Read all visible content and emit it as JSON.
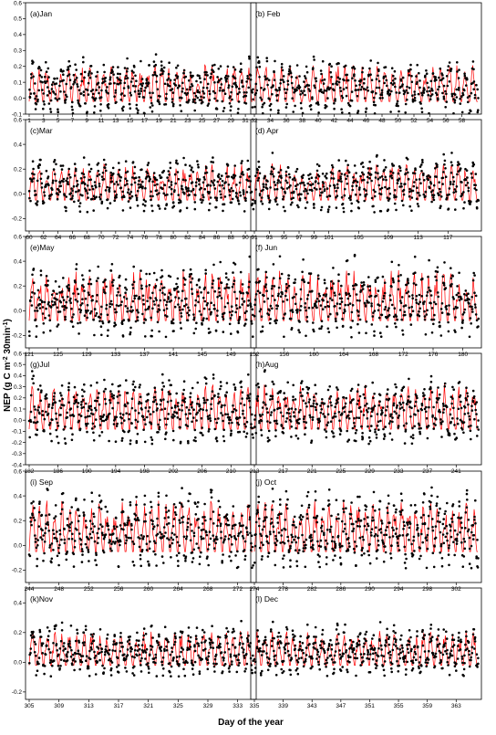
{
  "figure": {
    "ylabel_main": "NEP (g C m",
    "ylabel_sup1": "-2",
    "ylabel_mid": " 30min",
    "ylabel_sup2": "-1",
    "ylabel_end": ")",
    "xlabel": "Day of the year"
  },
  "colors": {
    "model": "#ff0000",
    "obs": "#000000",
    "axis": "#000000"
  },
  "chart_data": [
    {
      "type": "scatter",
      "title": "(a)Jan",
      "ylim": [
        -0.1,
        0.6
      ],
      "yticks": [
        "-0.1",
        "0.0",
        "0.1",
        "0.2",
        "0.3",
        "0.4",
        "0.5",
        "0.6"
      ],
      "yticks_values": [
        -0.1,
        0,
        0.1,
        0.2,
        0.3,
        0.4,
        0.5,
        0.6
      ],
      "xlim": [
        1,
        32
      ],
      "xticks": [
        "1",
        "3",
        "5",
        "7",
        "9",
        "11",
        "13",
        "15",
        "17",
        "19",
        "21",
        "23",
        "25",
        "27",
        "29",
        "31"
      ],
      "xticks_values": [
        1,
        3,
        5,
        7,
        9,
        11,
        13,
        15,
        17,
        19,
        21,
        23,
        25,
        27,
        29,
        31
      ],
      "series": [
        {
          "values": [
            0.0
          ]
        },
        {
          "values": [
            0.0
          ]
        }
      ]
    },
    {
      "type": "scatter",
      "title": "(b) Feb",
      "ylim": [
        -0.1,
        0.6
      ],
      "yticks": [],
      "yticks_values": [],
      "xlim": [
        32,
        60
      ],
      "xticks": [
        "32",
        "34",
        "36",
        "38",
        "40",
        "42",
        "44",
        "46",
        "48",
        "50",
        "52",
        "54",
        "56",
        "58"
      ],
      "xticks_values": [
        32,
        34,
        36,
        38,
        40,
        42,
        44,
        46,
        48,
        50,
        52,
        54,
        56,
        58
      ],
      "series": [
        {
          "values": [
            0.0
          ]
        },
        {
          "values": [
            0.0
          ]
        }
      ]
    },
    {
      "type": "scatter",
      "title": "(c)Mar",
      "ylim": [
        -0.3,
        0.6
      ],
      "yticks": [
        "-0.2",
        "0.0",
        "0.2",
        "0.4",
        "0.6"
      ],
      "yticks_values": [
        -0.2,
        0,
        0.2,
        0.4,
        0.6
      ],
      "xlim": [
        60,
        91
      ],
      "xticks": [
        "60",
        "62",
        "64",
        "66",
        "68",
        "70",
        "72",
        "74",
        "76",
        "78",
        "80",
        "82",
        "84",
        "86",
        "88",
        "90"
      ],
      "xticks_values": [
        60,
        62,
        64,
        66,
        68,
        70,
        72,
        74,
        76,
        78,
        80,
        82,
        84,
        86,
        88,
        90
      ],
      "series": [
        {
          "values": [
            0.0
          ]
        },
        {
          "values": [
            0.0
          ]
        }
      ]
    },
    {
      "type": "scatter",
      "title": "(d) Apr",
      "ylim": [
        -0.3,
        0.6
      ],
      "yticks": [],
      "yticks_values": [],
      "xlim": [
        91,
        121
      ],
      "xticks": [
        "91",
        "93",
        "95",
        "97",
        "99",
        "101",
        "105",
        "109",
        "113",
        "117"
      ],
      "xticks_values": [
        91,
        93,
        95,
        97,
        99,
        101,
        105,
        109,
        113,
        117
      ],
      "series": [
        {
          "values": [
            0.0
          ]
        },
        {
          "values": [
            0.0
          ]
        }
      ]
    },
    {
      "type": "scatter",
      "title": "(e)May",
      "ylim": [
        -0.3,
        0.6
      ],
      "yticks": [
        "-0.2",
        "0.0",
        "0.2",
        "0.4",
        "0.6"
      ],
      "yticks_values": [
        -0.2,
        0,
        0.2,
        0.4,
        0.6
      ],
      "xlim": [
        121,
        152
      ],
      "xticks": [
        "121",
        "125",
        "129",
        "133",
        "137",
        "141",
        "145",
        "149"
      ],
      "xticks_values": [
        121,
        125,
        129,
        133,
        137,
        141,
        145,
        149
      ],
      "series": [
        {
          "values": [
            0.0
          ]
        },
        {
          "values": [
            0.0
          ]
        }
      ]
    },
    {
      "type": "scatter",
      "title": "(f) Jun",
      "ylim": [
        -0.3,
        0.6
      ],
      "yticks": [],
      "yticks_values": [],
      "xlim": [
        152,
        182
      ],
      "xticks": [
        "152",
        "156",
        "160",
        "164",
        "168",
        "172",
        "176",
        "180"
      ],
      "xticks_values": [
        152,
        156,
        160,
        164,
        168,
        172,
        176,
        180
      ],
      "series": [
        {
          "values": [
            0.0
          ]
        },
        {
          "values": [
            0.0
          ]
        }
      ]
    },
    {
      "type": "scatter",
      "title": "(g)Jul",
      "ylim": [
        -0.4,
        0.6
      ],
      "yticks": [
        "-0.4",
        "-0.3",
        "-0.2",
        "-0.1",
        "0.0",
        "0.1",
        "0.2",
        "0.3",
        "0.4",
        "0.5",
        "0.6"
      ],
      "yticks_values": [
        -0.4,
        -0.3,
        -0.2,
        -0.1,
        0,
        0.1,
        0.2,
        0.3,
        0.4,
        0.5,
        0.6
      ],
      "xlim": [
        182,
        213
      ],
      "xticks": [
        "182",
        "186",
        "190",
        "194",
        "198",
        "202",
        "206",
        "210"
      ],
      "xticks_values": [
        182,
        186,
        190,
        194,
        198,
        202,
        206,
        210
      ],
      "series": [
        {
          "values": [
            0.0
          ]
        },
        {
          "values": [
            0.0
          ]
        }
      ]
    },
    {
      "type": "scatter",
      "title": "(h)Aug",
      "ylim": [
        -0.4,
        0.6
      ],
      "yticks": [],
      "yticks_values": [],
      "xlim": [
        213,
        244
      ],
      "xticks": [
        "213",
        "217",
        "221",
        "225",
        "229",
        "233",
        "237",
        "241"
      ],
      "xticks_values": [
        213,
        217,
        221,
        225,
        229,
        233,
        237,
        241
      ],
      "series": [
        {
          "values": [
            0.0
          ]
        },
        {
          "values": [
            0.0
          ]
        }
      ]
    },
    {
      "type": "scatter",
      "title": "(i)  Sep",
      "ylim": [
        -0.3,
        0.6
      ],
      "yticks": [
        "-0.2",
        "0.0",
        "0.2",
        "0.4",
        "0.6"
      ],
      "yticks_values": [
        -0.2,
        0,
        0.2,
        0.4,
        0.6
      ],
      "xlim": [
        244,
        274
      ],
      "xticks": [
        "244",
        "248",
        "252",
        "256",
        "260",
        "264",
        "268",
        "272"
      ],
      "xticks_values": [
        244,
        248,
        252,
        256,
        260,
        264,
        268,
        272
      ],
      "series": [
        {
          "values": [
            0.0
          ]
        },
        {
          "values": [
            0.0
          ]
        }
      ]
    },
    {
      "type": "scatter",
      "title": "(j)  Oct",
      "ylim": [
        -0.3,
        0.6
      ],
      "yticks": [],
      "yticks_values": [],
      "xlim": [
        274,
        305
      ],
      "xticks": [
        "274",
        "278",
        "282",
        "286",
        "290",
        "294",
        "298",
        "302"
      ],
      "xticks_values": [
        274,
        278,
        282,
        286,
        290,
        294,
        298,
        302
      ],
      "series": [
        {
          "values": [
            0.0
          ]
        },
        {
          "values": [
            0.0
          ]
        }
      ]
    },
    {
      "type": "scatter",
      "title": "(k)Nov",
      "ylim": [
        -0.25,
        0.5
      ],
      "yticks": [
        "-0.2",
        "0.0",
        "0.2",
        "0.4"
      ],
      "yticks_values": [
        -0.2,
        0,
        0.2,
        0.4
      ],
      "xlim": [
        305,
        335
      ],
      "xticks": [
        "305",
        "309",
        "313",
        "317",
        "321",
        "325",
        "329",
        "333"
      ],
      "xticks_values": [
        305,
        309,
        313,
        317,
        321,
        325,
        329,
        333
      ],
      "series": [
        {
          "values": [
            0.0
          ]
        },
        {
          "values": [
            0.0
          ]
        }
      ]
    },
    {
      "type": "scatter",
      "title": "(l)  Dec",
      "ylim": [
        -0.25,
        0.5
      ],
      "yticks": [],
      "yticks_values": [],
      "xlim": [
        335,
        366
      ],
      "xticks": [
        "335",
        "339",
        "343",
        "347",
        "351",
        "355",
        "359",
        "363"
      ],
      "xticks_values": [
        335,
        339,
        343,
        347,
        351,
        355,
        359,
        363
      ],
      "series": [
        {
          "values": [
            0.0
          ]
        },
        {
          "values": [
            0.0
          ]
        }
      ]
    }
  ]
}
